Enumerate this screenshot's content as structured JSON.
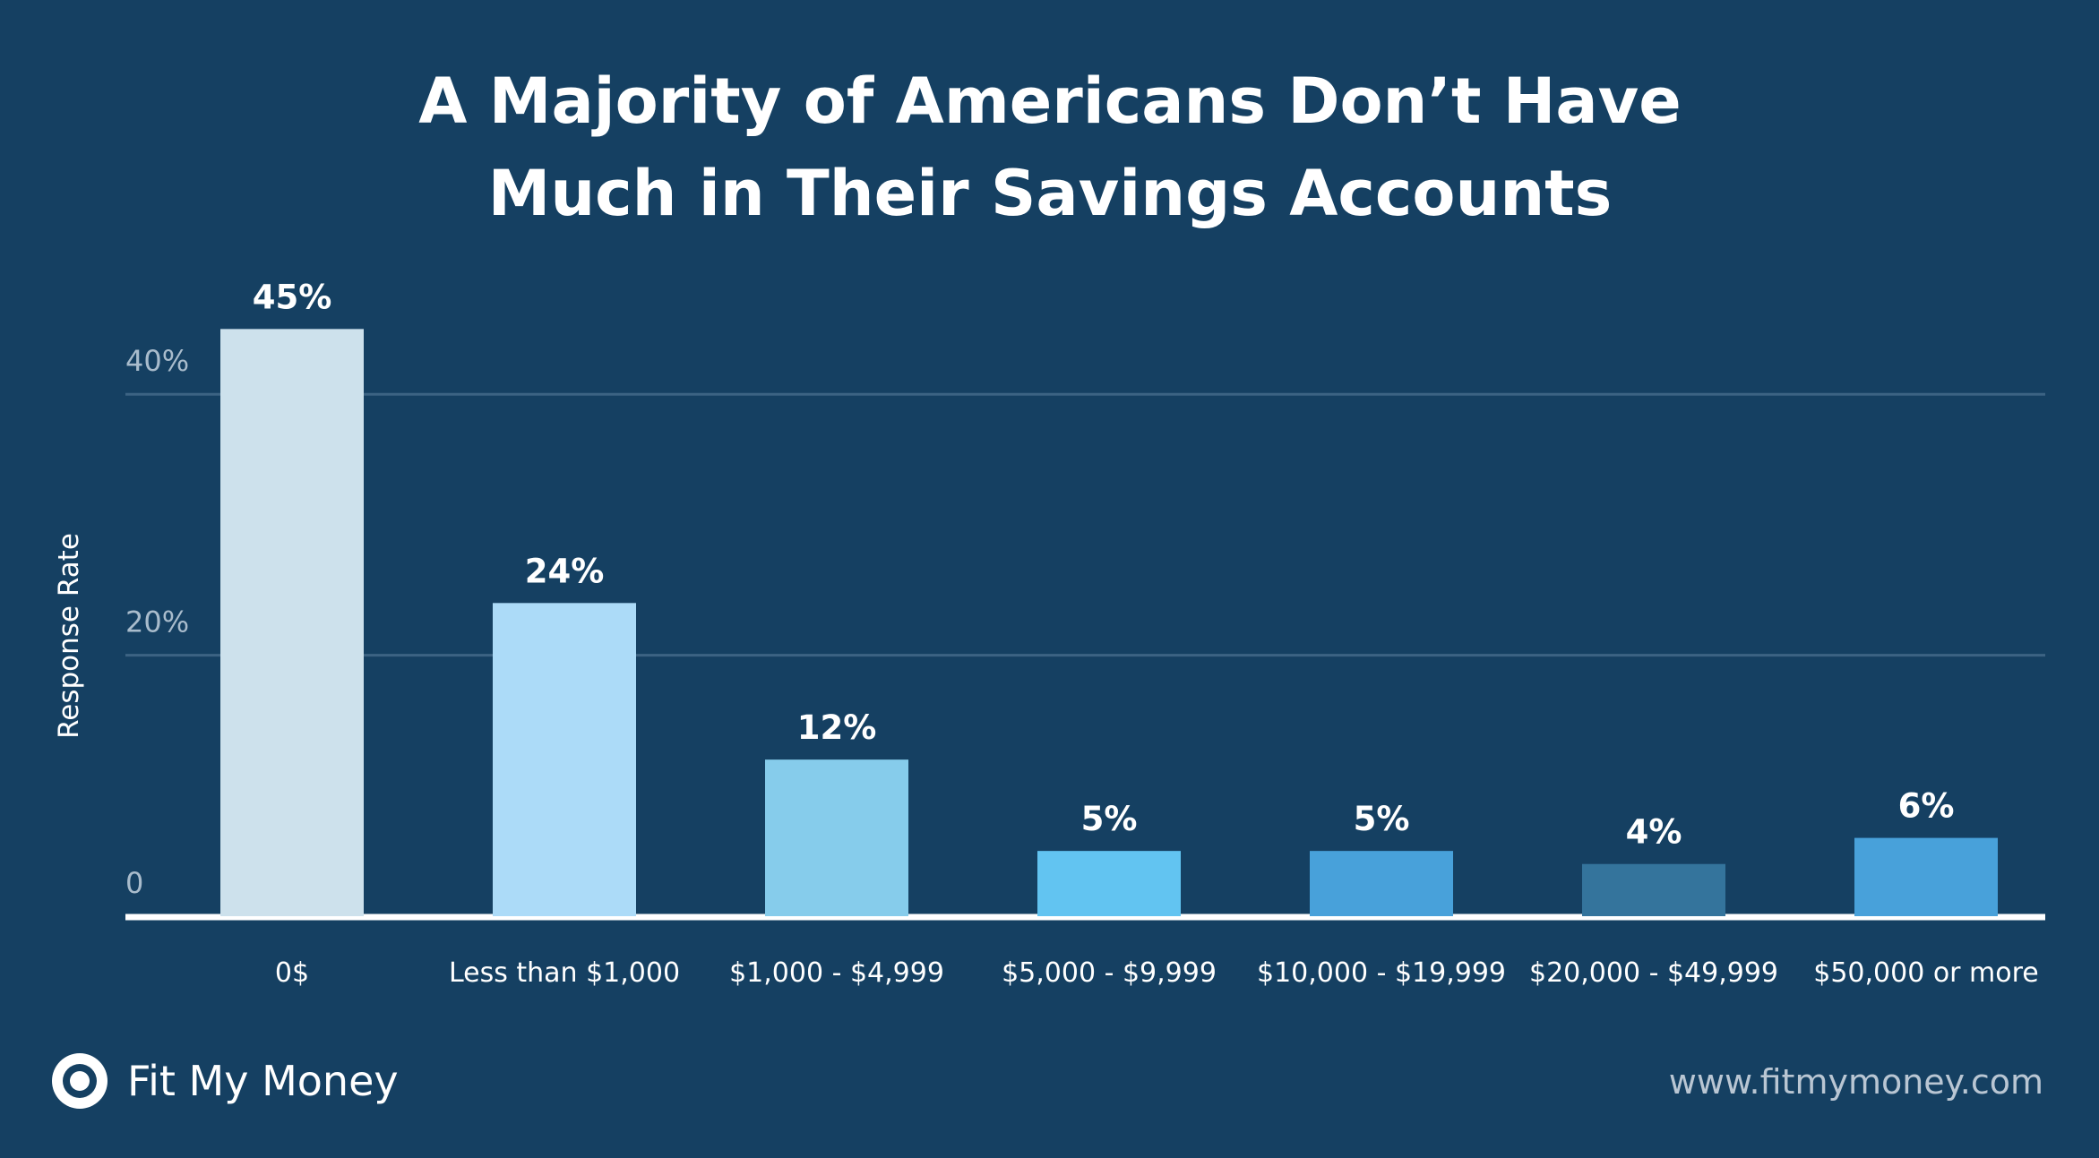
{
  "chart_data": {
    "type": "bar",
    "title_lines": [
      "A Majority of Americans Don’t Have",
      "Much in Their Savings Accounts"
    ],
    "xlabel": "",
    "ylabel": "Response Rate",
    "ylim": [
      0,
      45
    ],
    "yticks": [
      {
        "value": 0,
        "label": "0"
      },
      {
        "value": 20,
        "label": "20%"
      },
      {
        "value": 40,
        "label": "40%"
      }
    ],
    "grid": true,
    "categories": [
      "0$",
      "Less than $1,000",
      "$1,000 - $4,999",
      "$5,000 - $9,999",
      "$10,000 - $19,999",
      "$20,000 - $49,999",
      "$50,000 or more"
    ],
    "values": [
      45,
      24,
      12,
      5,
      5,
      4,
      6
    ],
    "value_labels": [
      "45%",
      "24%",
      "12%",
      "5%",
      "5%",
      "4%",
      "6%"
    ],
    "colors": [
      "#cde1ec",
      "#acdbf8",
      "#86cceb",
      "#62c4f1",
      "#48a1da",
      "#34749c",
      "#48a1da"
    ]
  },
  "footer": {
    "brand_name": "Fit My Money",
    "brand_icon": "target-icon",
    "url": "www.fitmymoney.com"
  }
}
